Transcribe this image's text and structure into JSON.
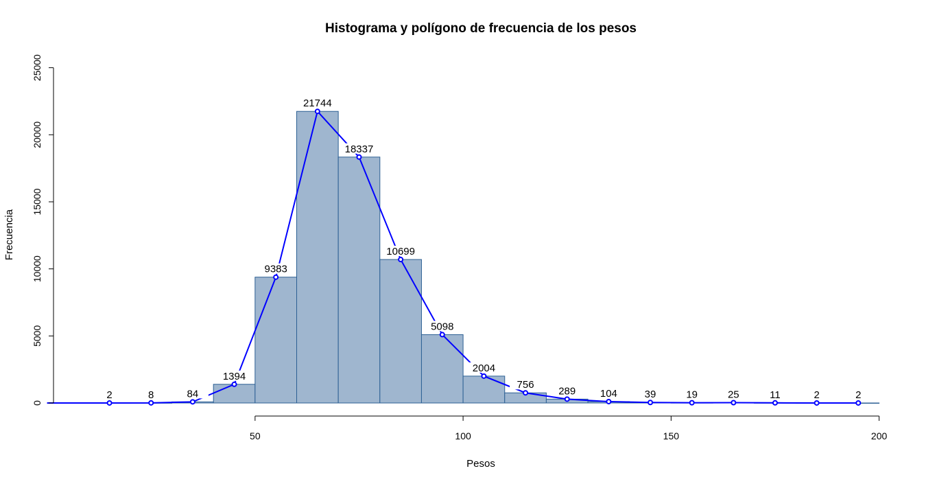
{
  "chart_data": {
    "type": "bar",
    "title": "Histograma y polígono de frecuencia de los pesos",
    "xlabel": "Pesos",
    "ylabel": "Frecuencia",
    "xlim": [
      0,
      200
    ],
    "ylim": [
      0,
      25000
    ],
    "x_ticks": [
      50,
      100,
      150,
      200
    ],
    "y_ticks": [
      0,
      5000,
      10000,
      15000,
      20000,
      25000
    ],
    "bins": [
      {
        "start": 10,
        "end": 20,
        "mid": 15,
        "count": 2
      },
      {
        "start": 20,
        "end": 30,
        "mid": 25,
        "count": 8
      },
      {
        "start": 30,
        "end": 40,
        "mid": 35,
        "count": 84
      },
      {
        "start": 40,
        "end": 50,
        "mid": 45,
        "count": 1394
      },
      {
        "start": 50,
        "end": 60,
        "mid": 55,
        "count": 9383
      },
      {
        "start": 60,
        "end": 70,
        "mid": 65,
        "count": 21744
      },
      {
        "start": 70,
        "end": 80,
        "mid": 75,
        "count": 18337
      },
      {
        "start": 80,
        "end": 90,
        "mid": 85,
        "count": 10699
      },
      {
        "start": 90,
        "end": 100,
        "mid": 95,
        "count": 5098
      },
      {
        "start": 100,
        "end": 110,
        "mid": 105,
        "count": 2004
      },
      {
        "start": 110,
        "end": 120,
        "mid": 115,
        "count": 756
      },
      {
        "start": 120,
        "end": 130,
        "mid": 125,
        "count": 289
      },
      {
        "start": 130,
        "end": 140,
        "mid": 135,
        "count": 104
      },
      {
        "start": 140,
        "end": 150,
        "mid": 145,
        "count": 39
      },
      {
        "start": 150,
        "end": 160,
        "mid": 155,
        "count": 19
      },
      {
        "start": 160,
        "end": 170,
        "mid": 165,
        "count": 25
      },
      {
        "start": 170,
        "end": 180,
        "mid": 175,
        "count": 11
      },
      {
        "start": 180,
        "end": 190,
        "mid": 185,
        "count": 2
      },
      {
        "start": 190,
        "end": 200,
        "mid": 195,
        "count": 2
      }
    ],
    "polygon_line_color": "#0000ff",
    "bar_fill": "#9fb6cf",
    "bar_border": "#2b5f93",
    "grid": false,
    "legend": "none"
  }
}
